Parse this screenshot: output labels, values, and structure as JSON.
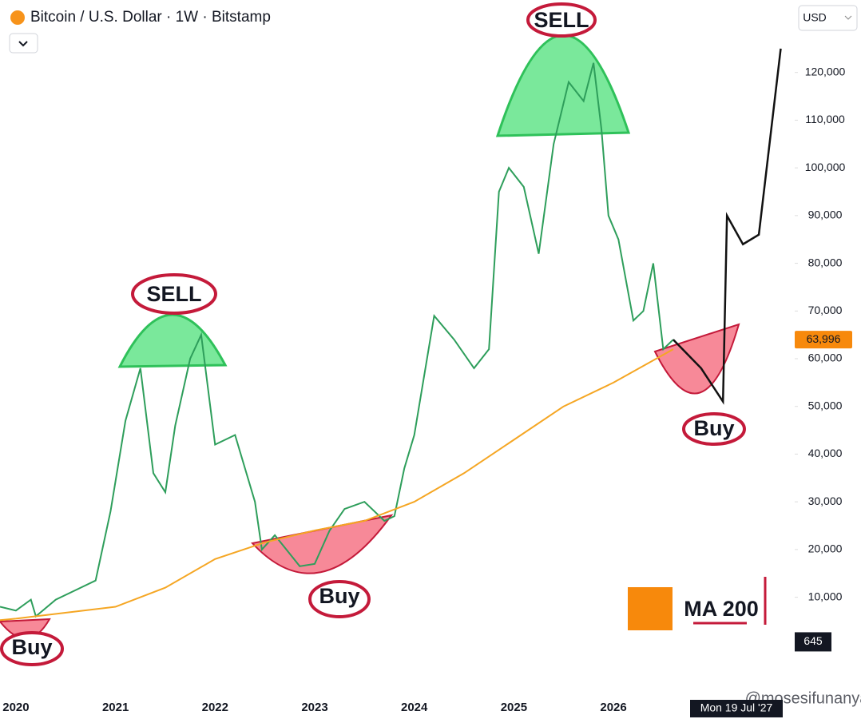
{
  "chart_data": {
    "type": "line",
    "title": "Bitcoin / U.S. Dollar · 1W · Bitstamp",
    "currency": "USD",
    "xlim": [
      2019.84,
      2027.78
    ],
    "xticks": [
      2020,
      2021,
      2022,
      2023,
      2024,
      2025,
      2026
    ],
    "ylim": [
      -10000,
      130000
    ],
    "yticks": [
      {
        "value": 10000,
        "label": "10,000"
      },
      {
        "value": 20000,
        "label": "20,000"
      },
      {
        "value": 30000,
        "label": "30,000"
      },
      {
        "value": 40000,
        "label": "40,000"
      },
      {
        "value": 50000,
        "label": "50,000"
      },
      {
        "value": 60000,
        "label": "60,000"
      },
      {
        "value": 70000,
        "label": "70,000"
      },
      {
        "value": 80000,
        "label": "80,000"
      },
      {
        "value": 90000,
        "label": "90,000"
      },
      {
        "value": 100000,
        "label": "100,000"
      },
      {
        "value": 110000,
        "label": "110,000"
      },
      {
        "value": 120000,
        "label": "120,000"
      }
    ],
    "series": [
      {
        "color": "#2e9e5b",
        "x": [
          2019.84,
          2020.0,
          2020.15,
          2020.2,
          2020.4,
          2020.6,
          2020.8,
          2020.95,
          2021.1,
          2021.25,
          2021.38,
          2021.5,
          2021.6,
          2021.75,
          2021.86,
          2022.0,
          2022.2,
          2022.4,
          2022.47,
          2022.6,
          2022.85,
          2023.0,
          2023.15,
          2023.3,
          2023.5,
          2023.7,
          2023.8,
          2023.9,
          2024.0,
          2024.2,
          2024.4,
          2024.6,
          2024.75,
          2024.85,
          2024.95,
          2025.1,
          2025.25,
          2025.4,
          2025.55,
          2025.7,
          2025.8,
          2025.88,
          2025.95,
          2026.05,
          2026.2,
          2026.3,
          2026.4,
          2026.5,
          2026.6
        ],
        "values": [
          8000,
          7200,
          9500,
          6000,
          9500,
          11500,
          13500,
          28000,
          47000,
          58000,
          36000,
          32000,
          46000,
          60000,
          65000,
          42000,
          44000,
          30000,
          20000,
          23000,
          16500,
          17000,
          24000,
          28500,
          30000,
          26000,
          27000,
          37000,
          44000,
          69000,
          64000,
          58000,
          62000,
          95000,
          100000,
          96000,
          82000,
          105000,
          118000,
          114000,
          122000,
          108000,
          90000,
          85000,
          68000,
          70000,
          80000,
          62000,
          64000
        ]
      },
      {
        "name": "MA 200",
        "color": "#f5a623",
        "x": [
          2019.84,
          2020.0,
          2021.0,
          2021.5,
          2022.0,
          2022.5,
          2023.0,
          2023.5,
          2024.0,
          2024.5,
          2025.0,
          2025.5,
          2026.0,
          2026.6
        ],
        "values": [
          5200,
          5500,
          8000,
          12000,
          18000,
          21500,
          24000,
          26000,
          30000,
          36000,
          43000,
          50000,
          55000,
          62000
        ]
      },
      {
        "color": "#111111",
        "x": [
          2026.6,
          2026.88,
          2027.1,
          2027.14,
          2027.3,
          2027.46,
          2027.68
        ],
        "values": [
          64000,
          58000,
          51000,
          90000,
          84000,
          86000,
          125000
        ]
      }
    ],
    "last_price": {
      "value": 63996,
      "label": "63,996"
    },
    "crosshair_value": 645,
    "crosshair_date": "Mon 19 Jul '27",
    "annotations": [
      "SELL",
      "SELL",
      "Buy",
      "Buy",
      "Buy"
    ],
    "watermark": "@mosesifunanya"
  }
}
